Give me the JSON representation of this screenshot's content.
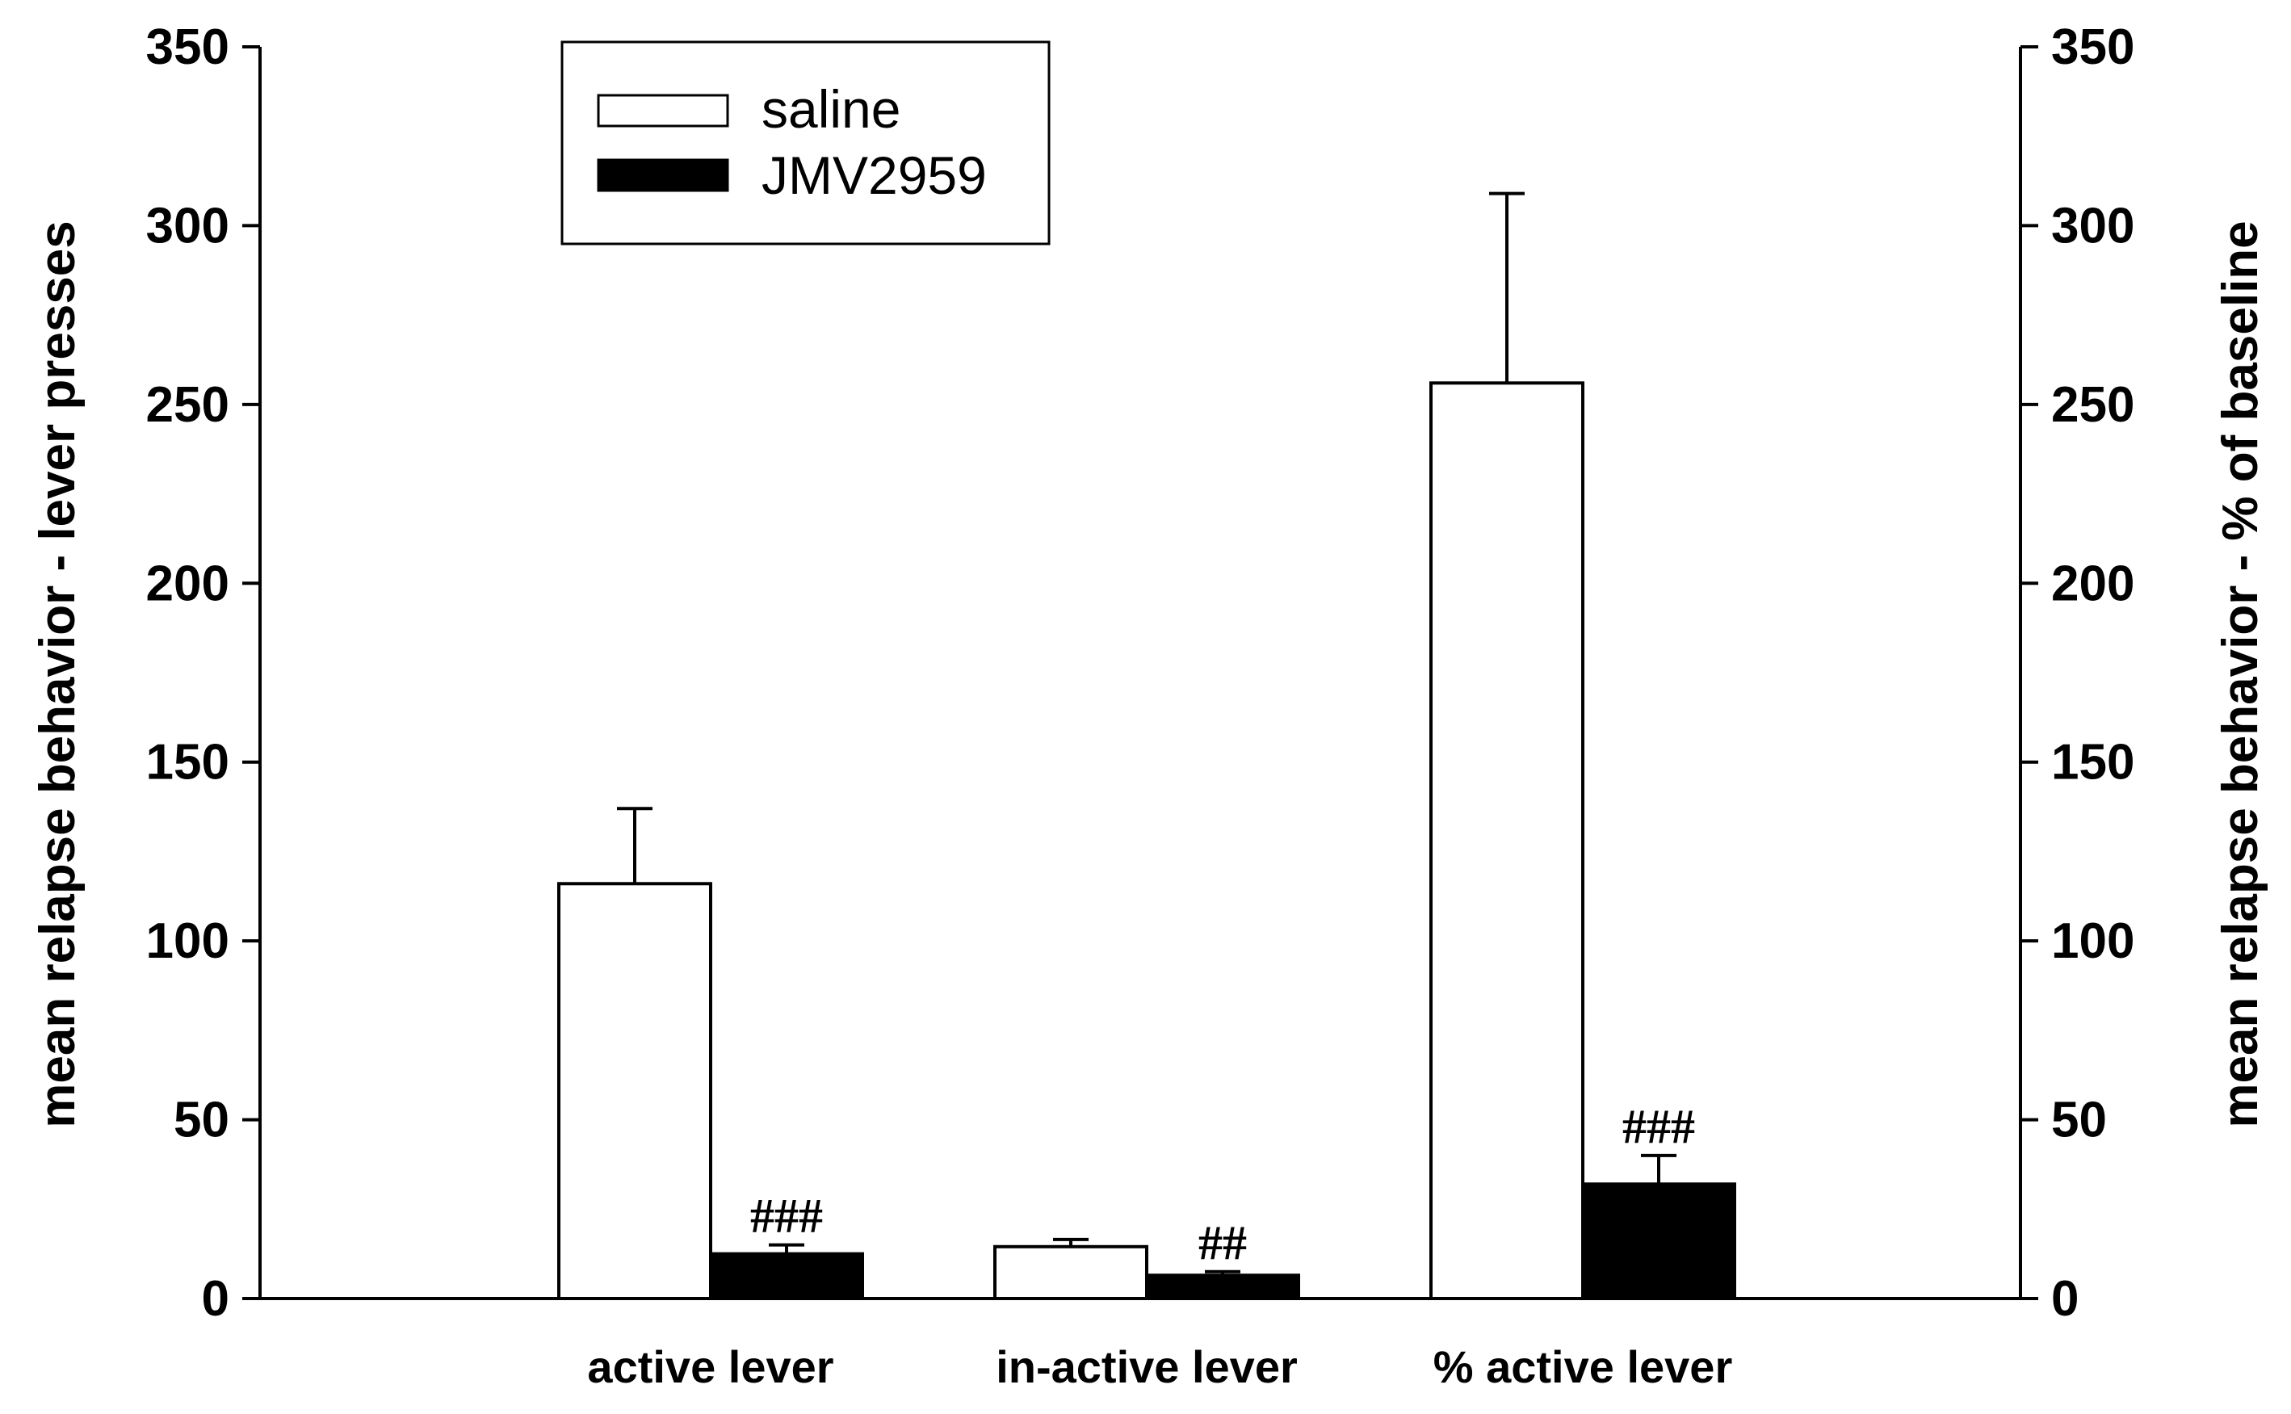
{
  "chart_data": {
    "type": "bar",
    "categories": [
      "active lever",
      "in-active lever",
      "% active lever"
    ],
    "series": [
      {
        "name": "saline",
        "color": "#ffffff",
        "values": [
          116,
          14.5,
          256
        ],
        "errors": [
          21,
          2,
          53
        ],
        "annotations": [
          "",
          "",
          ""
        ]
      },
      {
        "name": "JMV2959",
        "color": "#000000",
        "values": [
          12.5,
          6.5,
          32
        ],
        "errors": [
          2.5,
          1,
          8
        ],
        "annotations": [
          "###",
          "##",
          "###"
        ]
      }
    ],
    "ylabel": "mean relapse behavior - lever presses",
    "y2label": "mean relapse behavior - % of baseline",
    "ylim": [
      0,
      350
    ],
    "y2lim": [
      0,
      350
    ],
    "yticks": [
      0,
      50,
      100,
      150,
      200,
      250,
      300,
      350
    ],
    "grid": false,
    "legend_position": "top-left"
  }
}
